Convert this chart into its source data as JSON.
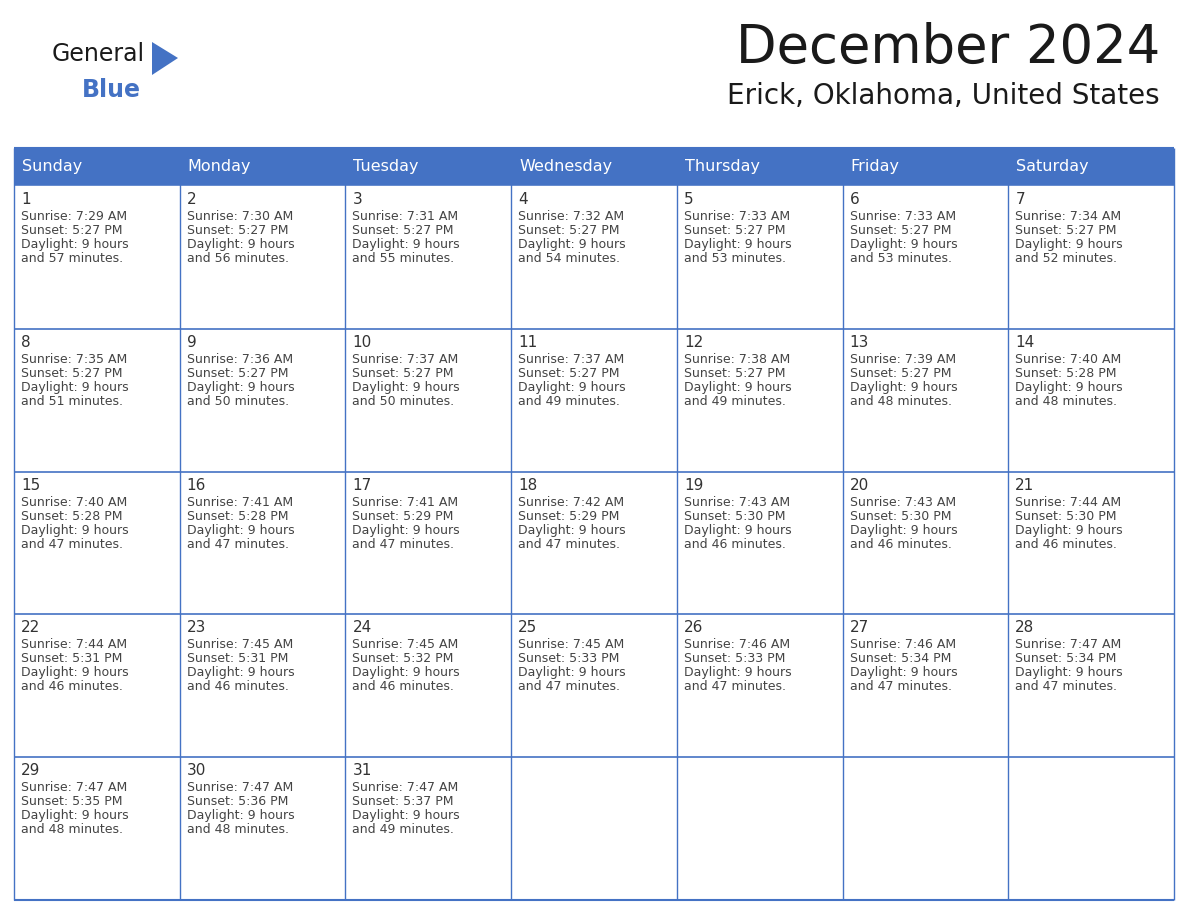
{
  "title": "December 2024",
  "subtitle": "Erick, Oklahoma, United States",
  "days_of_week": [
    "Sunday",
    "Monday",
    "Tuesday",
    "Wednesday",
    "Thursday",
    "Friday",
    "Saturday"
  ],
  "header_bg": "#4472C4",
  "header_text": "#FFFFFF",
  "cell_bg": "#FFFFFF",
  "cell_border": "#4472C4",
  "row_border": "#4472C4",
  "day_num_color": "#333333",
  "text_color": "#444444",
  "title_color": "#1a1a1a",
  "subtitle_color": "#1a1a1a",
  "weeks": [
    [
      {
        "day": 1,
        "sunrise": "7:29 AM",
        "sunset": "5:27 PM",
        "daylight_line1": "Daylight: 9 hours",
        "daylight_line2": "and 57 minutes."
      },
      {
        "day": 2,
        "sunrise": "7:30 AM",
        "sunset": "5:27 PM",
        "daylight_line1": "Daylight: 9 hours",
        "daylight_line2": "and 56 minutes."
      },
      {
        "day": 3,
        "sunrise": "7:31 AM",
        "sunset": "5:27 PM",
        "daylight_line1": "Daylight: 9 hours",
        "daylight_line2": "and 55 minutes."
      },
      {
        "day": 4,
        "sunrise": "7:32 AM",
        "sunset": "5:27 PM",
        "daylight_line1": "Daylight: 9 hours",
        "daylight_line2": "and 54 minutes."
      },
      {
        "day": 5,
        "sunrise": "7:33 AM",
        "sunset": "5:27 PM",
        "daylight_line1": "Daylight: 9 hours",
        "daylight_line2": "and 53 minutes."
      },
      {
        "day": 6,
        "sunrise": "7:33 AM",
        "sunset": "5:27 PM",
        "daylight_line1": "Daylight: 9 hours",
        "daylight_line2": "and 53 minutes."
      },
      {
        "day": 7,
        "sunrise": "7:34 AM",
        "sunset": "5:27 PM",
        "daylight_line1": "Daylight: 9 hours",
        "daylight_line2": "and 52 minutes."
      }
    ],
    [
      {
        "day": 8,
        "sunrise": "7:35 AM",
        "sunset": "5:27 PM",
        "daylight_line1": "Daylight: 9 hours",
        "daylight_line2": "and 51 minutes."
      },
      {
        "day": 9,
        "sunrise": "7:36 AM",
        "sunset": "5:27 PM",
        "daylight_line1": "Daylight: 9 hours",
        "daylight_line2": "and 50 minutes."
      },
      {
        "day": 10,
        "sunrise": "7:37 AM",
        "sunset": "5:27 PM",
        "daylight_line1": "Daylight: 9 hours",
        "daylight_line2": "and 50 minutes."
      },
      {
        "day": 11,
        "sunrise": "7:37 AM",
        "sunset": "5:27 PM",
        "daylight_line1": "Daylight: 9 hours",
        "daylight_line2": "and 49 minutes."
      },
      {
        "day": 12,
        "sunrise": "7:38 AM",
        "sunset": "5:27 PM",
        "daylight_line1": "Daylight: 9 hours",
        "daylight_line2": "and 49 minutes."
      },
      {
        "day": 13,
        "sunrise": "7:39 AM",
        "sunset": "5:27 PM",
        "daylight_line1": "Daylight: 9 hours",
        "daylight_line2": "and 48 minutes."
      },
      {
        "day": 14,
        "sunrise": "7:40 AM",
        "sunset": "5:28 PM",
        "daylight_line1": "Daylight: 9 hours",
        "daylight_line2": "and 48 minutes."
      }
    ],
    [
      {
        "day": 15,
        "sunrise": "7:40 AM",
        "sunset": "5:28 PM",
        "daylight_line1": "Daylight: 9 hours",
        "daylight_line2": "and 47 minutes."
      },
      {
        "day": 16,
        "sunrise": "7:41 AM",
        "sunset": "5:28 PM",
        "daylight_line1": "Daylight: 9 hours",
        "daylight_line2": "and 47 minutes."
      },
      {
        "day": 17,
        "sunrise": "7:41 AM",
        "sunset": "5:29 PM",
        "daylight_line1": "Daylight: 9 hours",
        "daylight_line2": "and 47 minutes."
      },
      {
        "day": 18,
        "sunrise": "7:42 AM",
        "sunset": "5:29 PM",
        "daylight_line1": "Daylight: 9 hours",
        "daylight_line2": "and 47 minutes."
      },
      {
        "day": 19,
        "sunrise": "7:43 AM",
        "sunset": "5:30 PM",
        "daylight_line1": "Daylight: 9 hours",
        "daylight_line2": "and 46 minutes."
      },
      {
        "day": 20,
        "sunrise": "7:43 AM",
        "sunset": "5:30 PM",
        "daylight_line1": "Daylight: 9 hours",
        "daylight_line2": "and 46 minutes."
      },
      {
        "day": 21,
        "sunrise": "7:44 AM",
        "sunset": "5:30 PM",
        "daylight_line1": "Daylight: 9 hours",
        "daylight_line2": "and 46 minutes."
      }
    ],
    [
      {
        "day": 22,
        "sunrise": "7:44 AM",
        "sunset": "5:31 PM",
        "daylight_line1": "Daylight: 9 hours",
        "daylight_line2": "and 46 minutes."
      },
      {
        "day": 23,
        "sunrise": "7:45 AM",
        "sunset": "5:31 PM",
        "daylight_line1": "Daylight: 9 hours",
        "daylight_line2": "and 46 minutes."
      },
      {
        "day": 24,
        "sunrise": "7:45 AM",
        "sunset": "5:32 PM",
        "daylight_line1": "Daylight: 9 hours",
        "daylight_line2": "and 46 minutes."
      },
      {
        "day": 25,
        "sunrise": "7:45 AM",
        "sunset": "5:33 PM",
        "daylight_line1": "Daylight: 9 hours",
        "daylight_line2": "and 47 minutes."
      },
      {
        "day": 26,
        "sunrise": "7:46 AM",
        "sunset": "5:33 PM",
        "daylight_line1": "Daylight: 9 hours",
        "daylight_line2": "and 47 minutes."
      },
      {
        "day": 27,
        "sunrise": "7:46 AM",
        "sunset": "5:34 PM",
        "daylight_line1": "Daylight: 9 hours",
        "daylight_line2": "and 47 minutes."
      },
      {
        "day": 28,
        "sunrise": "7:47 AM",
        "sunset": "5:34 PM",
        "daylight_line1": "Daylight: 9 hours",
        "daylight_line2": "and 47 minutes."
      }
    ],
    [
      {
        "day": 29,
        "sunrise": "7:47 AM",
        "sunset": "5:35 PM",
        "daylight_line1": "Daylight: 9 hours",
        "daylight_line2": "and 48 minutes."
      },
      {
        "day": 30,
        "sunrise": "7:47 AM",
        "sunset": "5:36 PM",
        "daylight_line1": "Daylight: 9 hours",
        "daylight_line2": "and 48 minutes."
      },
      {
        "day": 31,
        "sunrise": "7:47 AM",
        "sunset": "5:37 PM",
        "daylight_line1": "Daylight: 9 hours",
        "daylight_line2": "and 49 minutes."
      },
      null,
      null,
      null,
      null
    ]
  ],
  "fig_width": 11.88,
  "fig_height": 9.18,
  "dpi": 100
}
